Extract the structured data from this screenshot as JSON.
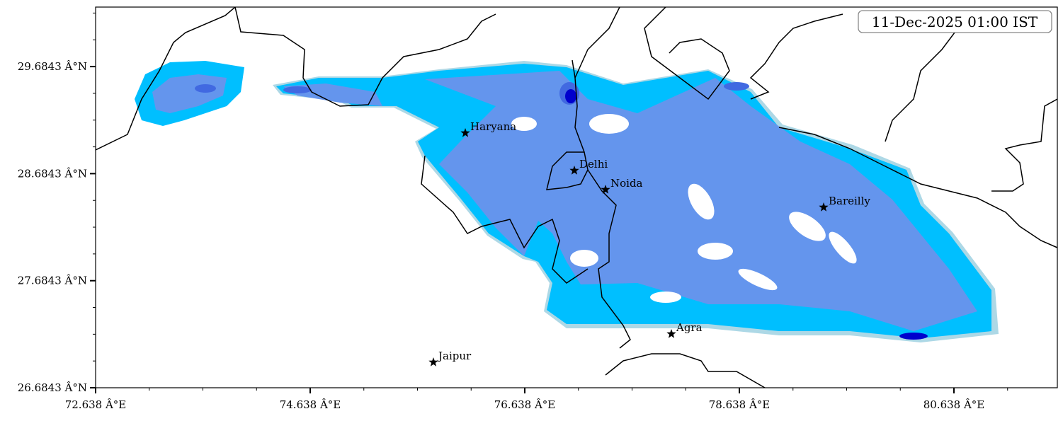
{
  "map": {
    "timestamp": "11-Dec-2025 01:00 IST",
    "x_ticks": [
      "72.638 Â°E",
      "74.638 Â°E",
      "76.638 Â°E",
      "78.638 Â°E",
      "80.638 Â°E"
    ],
    "y_ticks": [
      "29.6843 Â°N",
      "28.6843 Â°N",
      "27.6843 Â°N",
      "26.6843 Â°N"
    ],
    "places": [
      "Haryana",
      "Delhi",
      "Noida",
      "Bareilly",
      "Agra",
      "Jaipur"
    ]
  }
}
